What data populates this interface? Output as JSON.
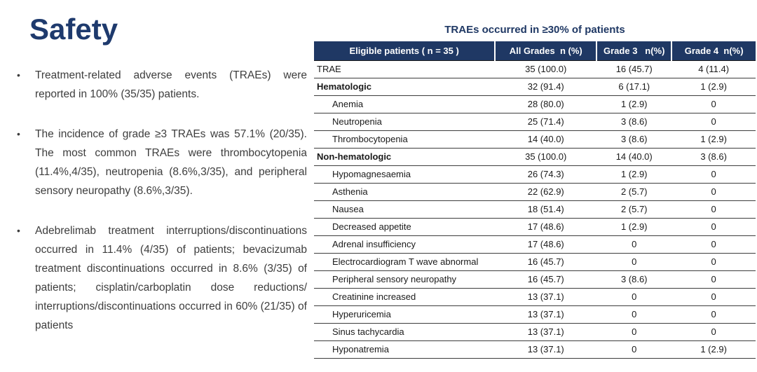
{
  "slide": {
    "title": "Safety",
    "bullet_marker": "•",
    "bullets": [
      "Treatment-related adverse events (TRAEs) were reported in 100% (35/35) patients.",
      "The incidence of grade ≥3 TRAEs was 57.1% (20/35). The most common TRAEs were thrombocytopenia (11.4%,4/35), neutropenia (8.6%,3/35), and peripheral sensory neuropathy (8.6%,3/35).",
      "Adebrelimab treatment interruptions/discontinuations occurred in 11.4% (4/35) of patients; bevacizumab treatment discontinuations occurred in 8.6% (3/35) of patients; cisplatin/carboplatin dose reductions/ interruptions/discontinuations occurred in 60% (21/35) of patients"
    ]
  },
  "table": {
    "title": "TRAEs occurred in ≥30% of patients",
    "columns": [
      "Eligible patients ( n = 35 )",
      "All Grades  n (%)",
      "Grade 3   n(%)",
      "Grade 4  n(%)"
    ],
    "rows": [
      {
        "label": "TRAE",
        "style": "normal",
        "values": [
          "35 (100.0)",
          "16 (45.7)",
          "4 (11.4)"
        ]
      },
      {
        "label": "Hematologic",
        "style": "category",
        "values": [
          "32 (91.4)",
          "6 (17.1)",
          "1 (2.9)"
        ]
      },
      {
        "label": "Anemia",
        "style": "sub",
        "values": [
          "28 (80.0)",
          "1 (2.9)",
          "0"
        ]
      },
      {
        "label": "Neutropenia",
        "style": "sub",
        "values": [
          "25 (71.4)",
          "3 (8.6)",
          "0"
        ]
      },
      {
        "label": "Thrombocytopenia",
        "style": "sub",
        "values": [
          "14 (40.0)",
          "3 (8.6)",
          "1 (2.9)"
        ]
      },
      {
        "label": "Non-hematologic",
        "style": "category",
        "values": [
          "35 (100.0)",
          "14 (40.0)",
          "3 (8.6)"
        ]
      },
      {
        "label": "Hypomagnesaemia",
        "style": "sub",
        "values": [
          "26 (74.3)",
          "1 (2.9)",
          "0"
        ]
      },
      {
        "label": "Asthenia",
        "style": "sub",
        "values": [
          "22 (62.9)",
          "2 (5.7)",
          "0"
        ]
      },
      {
        "label": "Nausea",
        "style": "sub",
        "values": [
          "18 (51.4)",
          "2 (5.7)",
          "0"
        ]
      },
      {
        "label": "Decreased appetite",
        "style": "sub",
        "values": [
          "17 (48.6)",
          "1 (2.9)",
          "0"
        ]
      },
      {
        "label": "Adrenal insufficiency",
        "style": "sub",
        "values": [
          "17 (48.6)",
          "0",
          "0"
        ]
      },
      {
        "label": "Electrocardiogram T wave abnormal",
        "style": "sub",
        "values": [
          "16 (45.7)",
          "0",
          "0"
        ]
      },
      {
        "label": "Peripheral sensory neuropathy",
        "style": "sub",
        "values": [
          "16 (45.7)",
          "3 (8.6)",
          "0"
        ]
      },
      {
        "label": "Creatinine increased",
        "style": "sub",
        "values": [
          "13 (37.1)",
          "0",
          "0"
        ]
      },
      {
        "label": "Hyperuricemia",
        "style": "sub",
        "values": [
          "13 (37.1)",
          "0",
          "0"
        ]
      },
      {
        "label": "Sinus tachycardia",
        "style": "sub",
        "values": [
          "13 (37.1)",
          "0",
          "0"
        ]
      },
      {
        "label": "Hyponatremia",
        "style": "sub",
        "values": [
          "13 (37.1)",
          "0",
          "1 (2.9)"
        ]
      }
    ]
  },
  "chart_data": {
    "type": "table",
    "title": "TRAEs occurred in ≥30% of patients",
    "columns": [
      "Eligible patients ( n = 35 )",
      "All Grades n (%)",
      "Grade 3 n(%)",
      "Grade 4 n(%)"
    ],
    "rows": [
      [
        "TRAE",
        "35 (100.0)",
        "16 (45.7)",
        "4 (11.4)"
      ],
      [
        "Hematologic",
        "32 (91.4)",
        "6 (17.1)",
        "1 (2.9)"
      ],
      [
        "Anemia",
        "28 (80.0)",
        "1 (2.9)",
        "0"
      ],
      [
        "Neutropenia",
        "25 (71.4)",
        "3 (8.6)",
        "0"
      ],
      [
        "Thrombocytopenia",
        "14 (40.0)",
        "3 (8.6)",
        "1 (2.9)"
      ],
      [
        "Non-hematologic",
        "35 (100.0)",
        "14 (40.0)",
        "3 (8.6)"
      ],
      [
        "Hypomagnesaemia",
        "26 (74.3)",
        "1 (2.9)",
        "0"
      ],
      [
        "Asthenia",
        "22 (62.9)",
        "2 (5.7)",
        "0"
      ],
      [
        "Nausea",
        "18 (51.4)",
        "2 (5.7)",
        "0"
      ],
      [
        "Decreased appetite",
        "17 (48.6)",
        "1 (2.9)",
        "0"
      ],
      [
        "Adrenal insufficiency",
        "17 (48.6)",
        "0",
        "0"
      ],
      [
        "Electrocardiogram T wave abnormal",
        "16 (45.7)",
        "0",
        "0"
      ],
      [
        "Peripheral sensory neuropathy",
        "16 (45.7)",
        "3 (8.6)",
        "0"
      ],
      [
        "Creatinine increased",
        "13 (37.1)",
        "0",
        "0"
      ],
      [
        "Hyperuricemia",
        "13 (37.1)",
        "0",
        "0"
      ],
      [
        "Sinus tachycardia",
        "13 (37.1)",
        "0",
        "0"
      ],
      [
        "Hyponatremia",
        "13 (37.1)",
        "0",
        "1 (2.9)"
      ]
    ]
  },
  "colors": {
    "navy_header": "#1f3864",
    "title_navy": "#1e3a6d",
    "body_text": "#3d3d3d",
    "table_text": "#1a1a1a",
    "row_divider": "#3c3c3c"
  }
}
